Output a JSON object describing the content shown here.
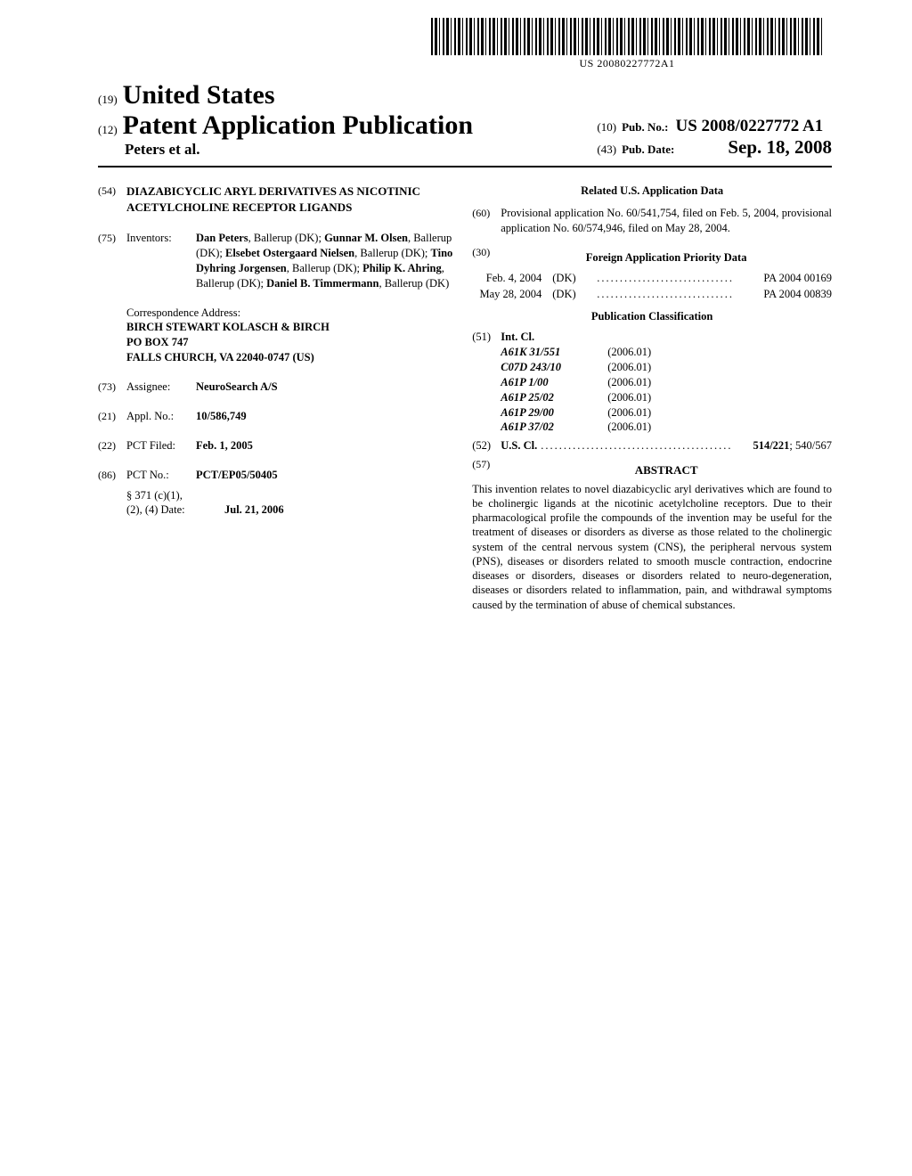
{
  "barcode_text": "US 20080227772A1",
  "header": {
    "code19": "(19)",
    "country": "United States",
    "code12": "(12)",
    "pub_type": "Patent Application Publication",
    "authors": "Peters et al.",
    "code10": "(10)",
    "pub_no_label": "Pub. No.:",
    "pub_no": "US 2008/0227772 A1",
    "code43": "(43)",
    "pub_date_label": "Pub. Date:",
    "pub_date": "Sep. 18, 2008"
  },
  "left": {
    "code54": "(54)",
    "title": "DIAZABICYCLIC ARYL DERIVATIVES AS NICOTINIC ACETYLCHOLINE RECEPTOR LIGANDS",
    "code75": "(75)",
    "inventors_label": "Inventors:",
    "inventors_html": "<b>Dan Peters</b>, Ballerup (DK); <b>Gunnar M. Olsen</b>, Ballerup (DK); <b>Elsebet Ostergaard Nielsen</b>, Ballerup (DK); <b>Tino Dyhring Jorgensen</b>, Ballerup (DK); <b>Philip K. Ahring</b>, Ballerup (DK); <b>Daniel B. Timmermann</b>, Ballerup (DK)",
    "corr_label": "Correspondence Address:",
    "corr_name": "BIRCH STEWART KOLASCH & BIRCH",
    "corr_po": "PO BOX 747",
    "corr_city": "FALLS CHURCH, VA 22040-0747 (US)",
    "code73": "(73)",
    "assignee_label": "Assignee:",
    "assignee": "NeuroSearch A/S",
    "code21": "(21)",
    "applno_label": "Appl. No.:",
    "applno": "10/586,749",
    "code22": "(22)",
    "pctfiled_label": "PCT Filed:",
    "pctfiled": "Feb. 1, 2005",
    "code86": "(86)",
    "pctno_label": "PCT No.:",
    "pctno": "PCT/EP05/50405",
    "s371_label": "§ 371 (c)(1),",
    "s371_label2": "(2), (4) Date:",
    "s371_date": "Jul. 21, 2006"
  },
  "right": {
    "related_title": "Related U.S. Application Data",
    "code60": "(60)",
    "related_text": "Provisional application No. 60/541,754, filed on Feb. 5, 2004, provisional application No. 60/574,946, filed on May 28, 2004.",
    "code30": "(30)",
    "foreign_title": "Foreign Application Priority Data",
    "foreign": [
      {
        "date": "Feb. 4, 2004",
        "country": "(DK)",
        "num": "PA 2004 00169"
      },
      {
        "date": "May 28, 2004",
        "country": "(DK)",
        "num": "PA 2004 00839"
      }
    ],
    "pubclass_title": "Publication Classification",
    "code51": "(51)",
    "intcl_label": "Int. Cl.",
    "intcl": [
      {
        "code": "A61K 31/551",
        "year": "(2006.01)"
      },
      {
        "code": "C07D 243/10",
        "year": "(2006.01)"
      },
      {
        "code": "A61P 1/00",
        "year": "(2006.01)"
      },
      {
        "code": "A61P 25/02",
        "year": "(2006.01)"
      },
      {
        "code": "A61P 29/00",
        "year": "(2006.01)"
      },
      {
        "code": "A61P 37/02",
        "year": "(2006.01)"
      }
    ],
    "code52": "(52)",
    "uscl_label": "U.S. Cl.",
    "uscl_main": "514/221",
    "uscl_sec": "; 540/567",
    "code57": "(57)",
    "abstract_title": "ABSTRACT",
    "abstract_text": "This invention relates to novel diazabicyclic aryl derivatives which are found to be cholinergic ligands at the nicotinic acetylcholine receptors. Due to their pharmacological profile the compounds of the invention may be useful for the treatment of diseases or disorders as diverse as those related to the cholinergic system of the central nervous system (CNS), the peripheral nervous system (PNS), diseases or disorders related to smooth muscle contraction, endocrine diseases or disorders, diseases or disorders related to neuro-degeneration, diseases or disorders related to inflammation, pain, and withdrawal symptoms caused by the termination of abuse of chemical substances."
  }
}
